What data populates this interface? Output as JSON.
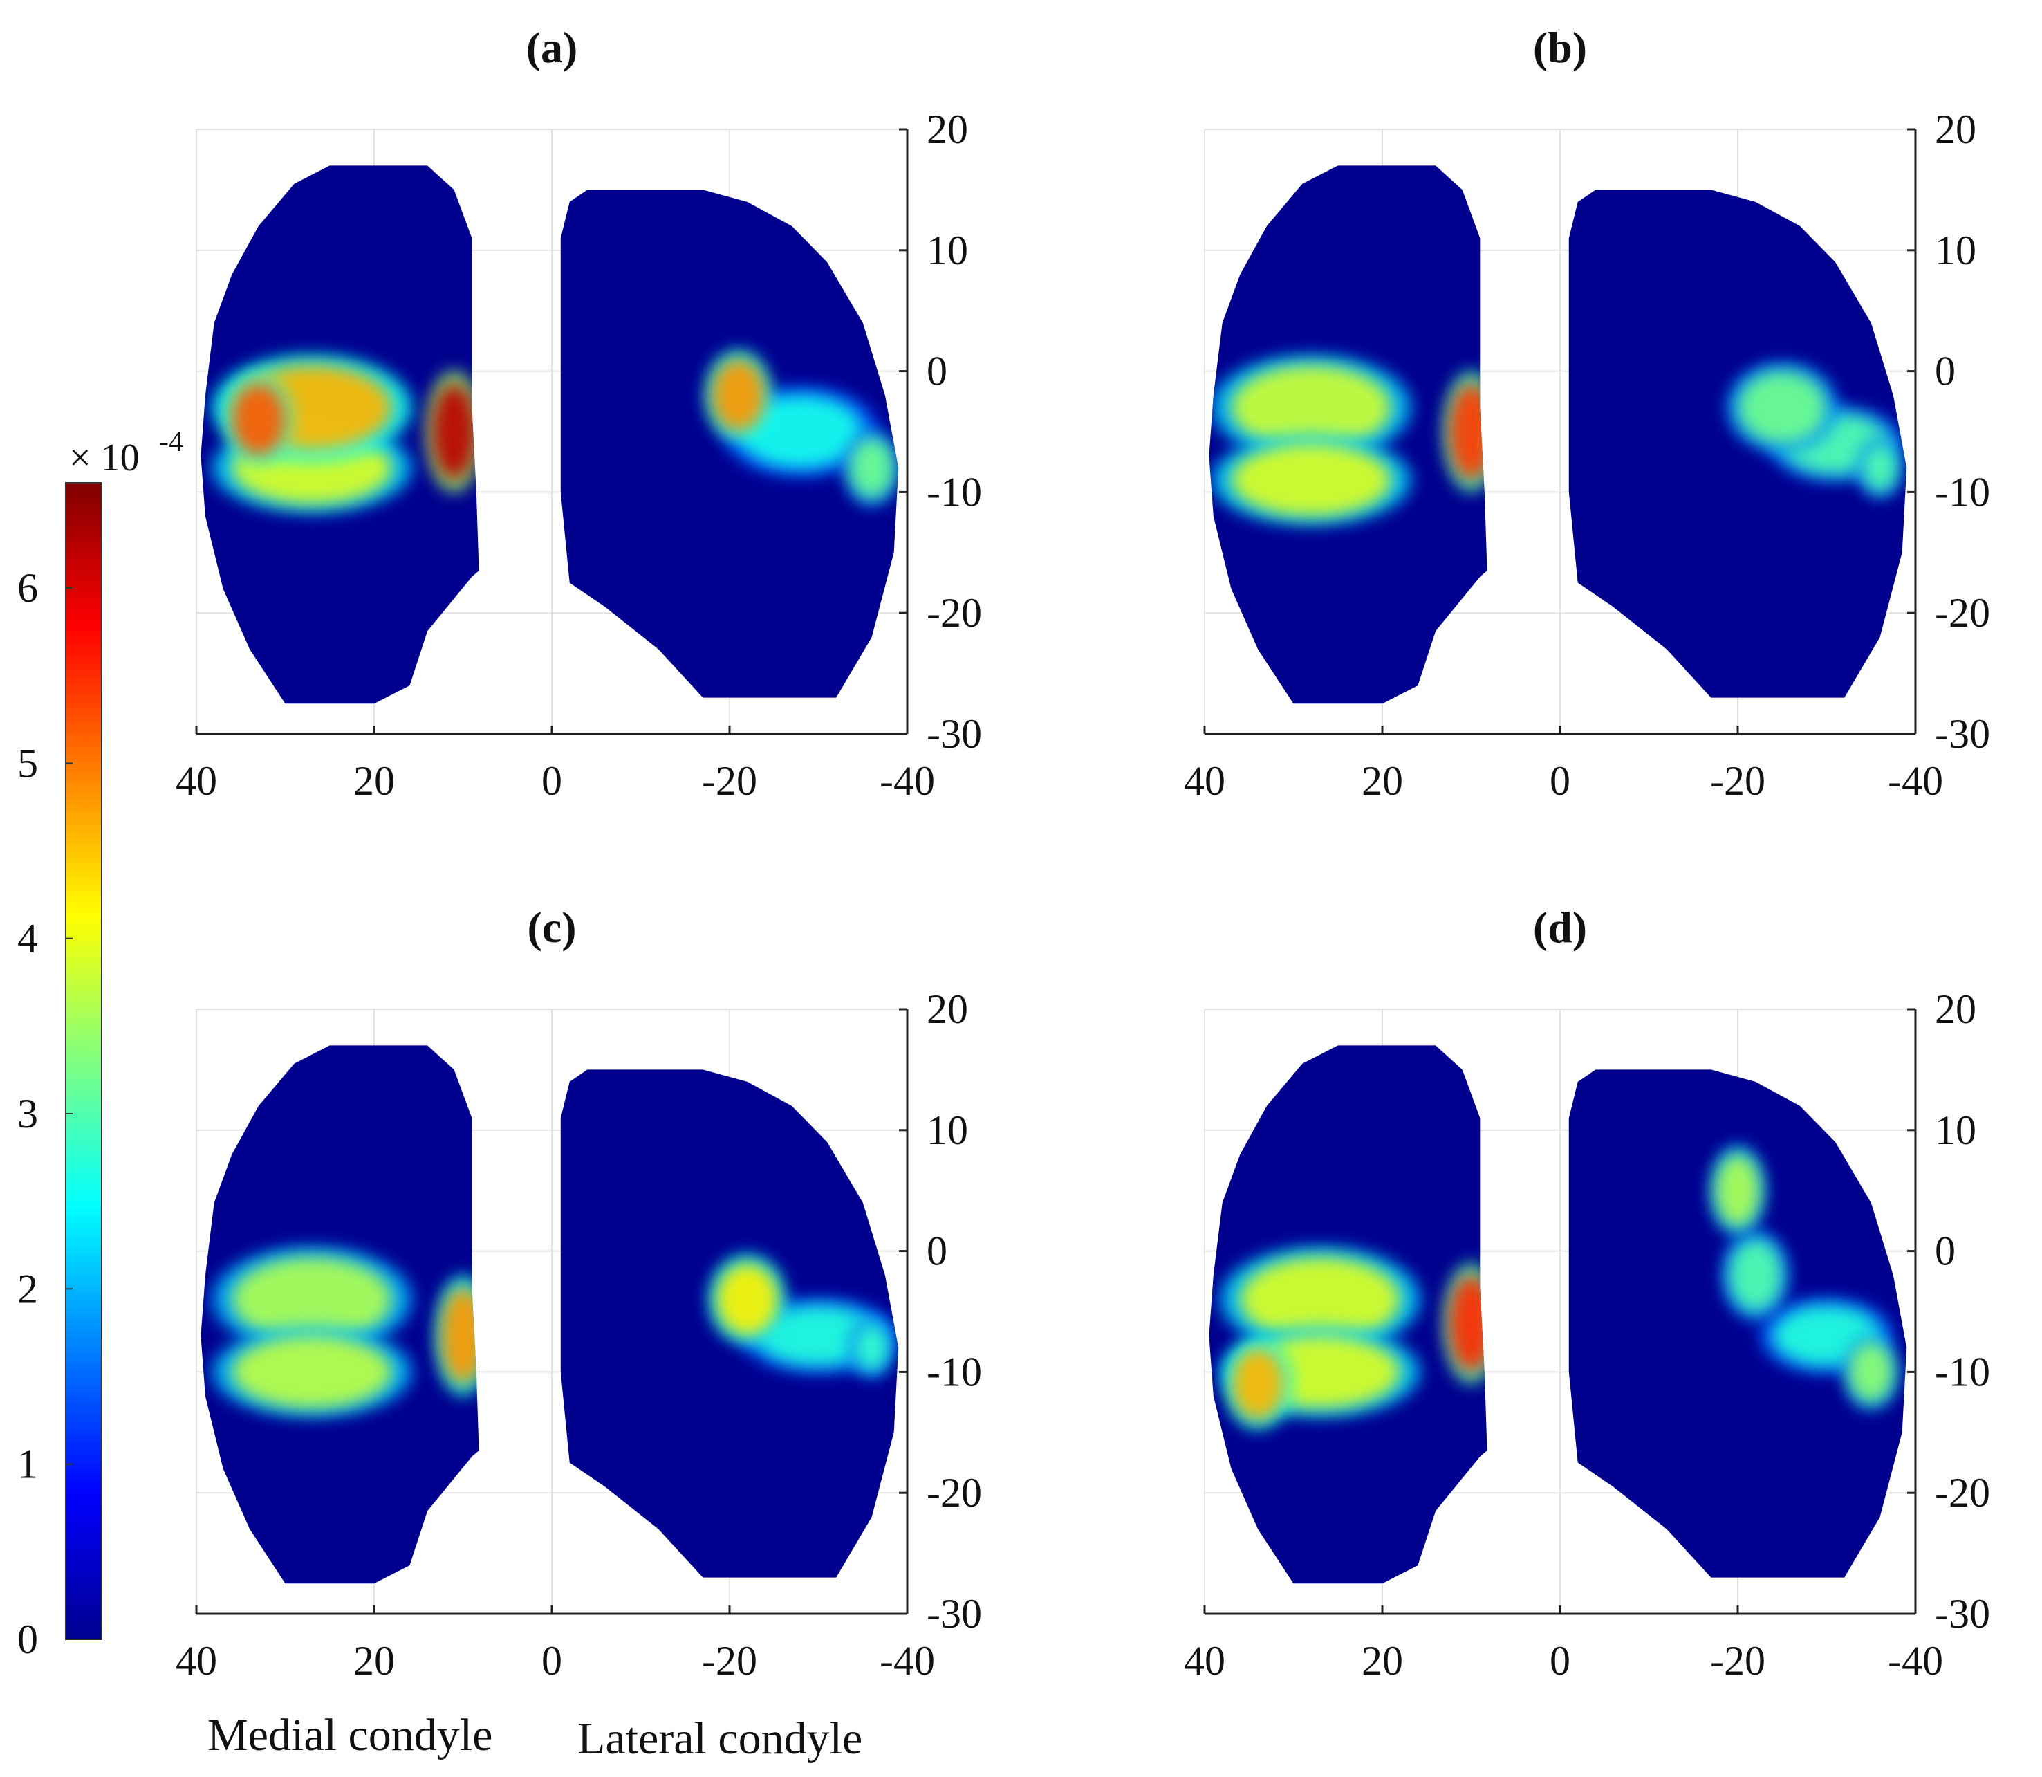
{
  "chart_data": {
    "type": "heatmap",
    "colormap": "jet",
    "colorbar": {
      "exponent_label": "× 10",
      "exponent_power": "-4",
      "range": [
        0,
        6.6
      ],
      "ticks": [
        "0",
        "1",
        "2",
        "3",
        "4",
        "5",
        "6"
      ]
    },
    "xlabels": [
      "Medial condyle",
      "Lateral condyle"
    ],
    "panels": [
      {
        "title": "(a)",
        "xlim": [
          40,
          -40
        ],
        "ylim": [
          -30,
          20
        ],
        "xticks": [
          "40",
          "20",
          "0",
          "-20",
          "-40"
        ],
        "yticks": [
          "20",
          "10",
          "0",
          "-10",
          "-20",
          "-30"
        ],
        "grid": true,
        "blobs": [
          {
            "x": 27,
            "y": -3,
            "rx": 9,
            "ry": 3.5,
            "value": 4.6
          },
          {
            "x": 27,
            "y": -8,
            "rx": 9,
            "ry": 3,
            "value": 3.9
          },
          {
            "x": 33,
            "y": -4,
            "rx": 3,
            "ry": 3,
            "value": 5.2
          },
          {
            "x": 11,
            "y": -5,
            "rx": 2.5,
            "ry": 4,
            "value": 6.2
          },
          {
            "x": -21,
            "y": -2,
            "rx": 3,
            "ry": 3,
            "value": 4.8
          },
          {
            "x": -28,
            "y": -5,
            "rx": 7,
            "ry": 3,
            "value": 2.6
          },
          {
            "x": -36,
            "y": -8,
            "rx": 2.5,
            "ry": 2.5,
            "value": 3.2
          }
        ]
      },
      {
        "title": "(b)",
        "xlim": [
          40,
          -40
        ],
        "ylim": [
          -30,
          20
        ],
        "xticks": [
          "40",
          "20",
          "0",
          "-20",
          "-40"
        ],
        "yticks": [
          "20",
          "10",
          "0",
          "-10",
          "-20",
          "-30"
        ],
        "grid": true,
        "blobs": [
          {
            "x": 28,
            "y": -3,
            "rx": 9,
            "ry": 3.5,
            "value": 3.8
          },
          {
            "x": 28,
            "y": -9,
            "rx": 9,
            "ry": 3,
            "value": 3.9
          },
          {
            "x": 10,
            "y": -5,
            "rx": 2.5,
            "ry": 4,
            "value": 5.4
          },
          {
            "x": -25,
            "y": -3,
            "rx": 5,
            "ry": 3,
            "value": 3.2
          },
          {
            "x": -31,
            "y": -6,
            "rx": 6,
            "ry": 2.5,
            "value": 3.0
          },
          {
            "x": -36,
            "y": -8,
            "rx": 2,
            "ry": 2,
            "value": 3.0
          }
        ]
      },
      {
        "title": "(c)",
        "xlim": [
          40,
          -40
        ],
        "ylim": [
          -30,
          20
        ],
        "xticks": [
          "40",
          "20",
          "0",
          "-20",
          "-40"
        ],
        "yticks": [
          "20",
          "10",
          "0",
          "-10",
          "-20",
          "-30"
        ],
        "grid": true,
        "blobs": [
          {
            "x": 27,
            "y": -4,
            "rx": 9,
            "ry": 3.5,
            "value": 3.6
          },
          {
            "x": 27,
            "y": -10,
            "rx": 9,
            "ry": 3,
            "value": 3.7
          },
          {
            "x": 10,
            "y": -7,
            "rx": 2.5,
            "ry": 4,
            "value": 4.8
          },
          {
            "x": -22,
            "y": -4,
            "rx": 3.5,
            "ry": 3,
            "value": 4.2
          },
          {
            "x": -30,
            "y": -7,
            "rx": 7,
            "ry": 2.5,
            "value": 2.7
          },
          {
            "x": -36,
            "y": -8,
            "rx": 2,
            "ry": 2,
            "value": 2.8
          }
        ]
      },
      {
        "title": "(d)",
        "xlim": [
          40,
          -40
        ],
        "ylim": [
          -30,
          20
        ],
        "xticks": [
          "40",
          "20",
          "0",
          "-20",
          "-40"
        ],
        "yticks": [
          "20",
          "10",
          "0",
          "-10",
          "-20",
          "-30"
        ],
        "grid": true,
        "blobs": [
          {
            "x": 27,
            "y": -4,
            "rx": 9,
            "ry": 3.5,
            "value": 3.9
          },
          {
            "x": 27,
            "y": -10,
            "rx": 9,
            "ry": 3,
            "value": 3.9
          },
          {
            "x": 34,
            "y": -11,
            "rx": 3,
            "ry": 3,
            "value": 4.6
          },
          {
            "x": 10,
            "y": -6,
            "rx": 2.5,
            "ry": 4,
            "value": 5.5
          },
          {
            "x": -20,
            "y": 5,
            "rx": 2.5,
            "ry": 3,
            "value": 3.6
          },
          {
            "x": -22,
            "y": -2,
            "rx": 3,
            "ry": 3,
            "value": 3.0
          },
          {
            "x": -30,
            "y": -7,
            "rx": 6,
            "ry": 2.5,
            "value": 2.7
          },
          {
            "x": -35,
            "y": -10,
            "rx": 2.5,
            "ry": 2.5,
            "value": 3.4
          }
        ]
      }
    ]
  }
}
